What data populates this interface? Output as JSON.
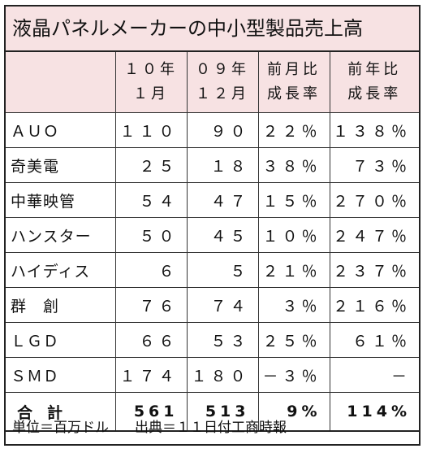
{
  "title": "液晶パネルメーカーの中小型製品売上高",
  "columns": {
    "c1_line1": "１０年",
    "c1_line2": "１月",
    "c2_line1": "０９年",
    "c2_line2": "１２月",
    "c3_line1": "前月比",
    "c3_line2": "成長率",
    "c4_line1": "前年比",
    "c4_line2": "成長率"
  },
  "rows": [
    {
      "name": "ＡＵＯ",
      "v1": "１１０",
      "v2": "９０",
      "v3": "２２％",
      "v4": "１３８％"
    },
    {
      "name": "奇美電",
      "v1": "２５",
      "v2": "１８",
      "v3": "３８％",
      "v4": "７３％"
    },
    {
      "name": "中華映管",
      "v1": "５４",
      "v2": "４７",
      "v3": "１５％",
      "v4": "２７０％"
    },
    {
      "name": "ハンスター",
      "v1": "５０",
      "v2": "４５",
      "v3": "１０％",
      "v4": "２４７％"
    },
    {
      "name": "ハイディス",
      "v1": "６",
      "v2": "５",
      "v3": "２１％",
      "v4": "２３７％"
    },
    {
      "name": "群　創",
      "v1": "７６",
      "v2": "７４",
      "v3": "３％",
      "v4": "２１６％"
    },
    {
      "name": "ＬＧＤ",
      "v1": "６６",
      "v2": "５３",
      "v3": "２５％",
      "v4": "６１％"
    },
    {
      "name": "ＳＭＤ",
      "v1": "１７４",
      "v2": "１８０",
      "v3": "－３％",
      "v4": "－"
    }
  ],
  "total": {
    "name": "合計",
    "v1": "561",
    "v2": "513",
    "v3": "9%",
    "v4": "114%"
  },
  "footer": {
    "unit": "単位＝百万ドル",
    "source": "出典＝１１日付工商時報"
  }
}
